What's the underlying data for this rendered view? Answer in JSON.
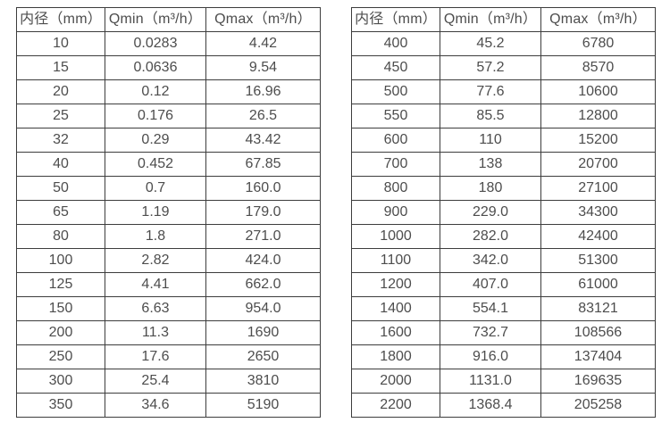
{
  "colors": {
    "text": "#4d4d4d",
    "border": "#3d3d3d",
    "background": "#ffffff"
  },
  "tables": [
    {
      "id": "flow-table-small-diameters",
      "headers": [
        "内径（mm）",
        "Qmin（m³/h）",
        "Qmax（m³/h）"
      ],
      "rows": [
        [
          "10",
          "0.0283",
          "4.42"
        ],
        [
          "15",
          "0.0636",
          "9.54"
        ],
        [
          "20",
          "0.12",
          "16.96"
        ],
        [
          "25",
          "0.176",
          "26.5"
        ],
        [
          "32",
          "0.29",
          "43.42"
        ],
        [
          "40",
          "0.452",
          "67.85"
        ],
        [
          "50",
          "0.7",
          "160.0"
        ],
        [
          "65",
          "1.19",
          "179.0"
        ],
        [
          "80",
          "1.8",
          "271.0"
        ],
        [
          "100",
          "2.82",
          "424.0"
        ],
        [
          "125",
          "4.41",
          "662.0"
        ],
        [
          "150",
          "6.63",
          "954.0"
        ],
        [
          "200",
          "11.3",
          "1690"
        ],
        [
          "250",
          "17.6",
          "2650"
        ],
        [
          "300",
          "25.4",
          "3810"
        ],
        [
          "350",
          "34.6",
          "5190"
        ]
      ]
    },
    {
      "id": "flow-table-large-diameters",
      "headers": [
        "内径（mm）",
        "Qmin（m³/h）",
        "Qmax（m³/h）"
      ],
      "rows": [
        [
          "400",
          "45.2",
          "6780"
        ],
        [
          "450",
          "57.2",
          "8570"
        ],
        [
          "500",
          "77.6",
          "10600"
        ],
        [
          "550",
          "85.5",
          "12800"
        ],
        [
          "600",
          "110",
          "15200"
        ],
        [
          "700",
          "138",
          "20700"
        ],
        [
          "800",
          "180",
          "27100"
        ],
        [
          "900",
          "229.0",
          "34300"
        ],
        [
          "1000",
          "282.0",
          "42400"
        ],
        [
          "1100",
          "342.0",
          "51300"
        ],
        [
          "1200",
          "407.0",
          "61000"
        ],
        [
          "1400",
          "554.1",
          "83121"
        ],
        [
          "1600",
          "732.7",
          "108566"
        ],
        [
          "1800",
          "916.0",
          "137404"
        ],
        [
          "2000",
          "1131.0",
          "169635"
        ],
        [
          "2200",
          "1368.4",
          "205258"
        ]
      ]
    }
  ]
}
